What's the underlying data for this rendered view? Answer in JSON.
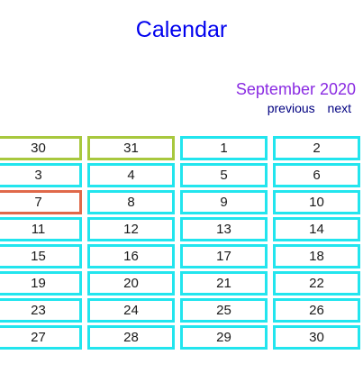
{
  "title": "Calendar",
  "month_label": "September 2020",
  "nav": {
    "previous": "previous",
    "next": "next"
  },
  "selected_day": "7",
  "colors": {
    "title": "#0000ee",
    "month_label": "#8a2be2",
    "nav": "#000080",
    "current_month_border": "#22e5ee",
    "adjacent_month_border": "#a8c83e",
    "selected_border": "#e0694a"
  },
  "days": [
    {
      "label": "30",
      "state": "prev-month"
    },
    {
      "label": "31",
      "state": "prev-month"
    },
    {
      "label": "1",
      "state": "current"
    },
    {
      "label": "2",
      "state": "current"
    },
    {
      "label": "3",
      "state": "current"
    },
    {
      "label": "4",
      "state": "current"
    },
    {
      "label": "5",
      "state": "current"
    },
    {
      "label": "6",
      "state": "current"
    },
    {
      "label": "7",
      "state": "selected"
    },
    {
      "label": "8",
      "state": "current"
    },
    {
      "label": "9",
      "state": "current"
    },
    {
      "label": "10",
      "state": "current"
    },
    {
      "label": "11",
      "state": "current"
    },
    {
      "label": "12",
      "state": "current"
    },
    {
      "label": "13",
      "state": "current"
    },
    {
      "label": "14",
      "state": "current"
    },
    {
      "label": "15",
      "state": "current"
    },
    {
      "label": "16",
      "state": "current"
    },
    {
      "label": "17",
      "state": "current"
    },
    {
      "label": "18",
      "state": "current"
    },
    {
      "label": "19",
      "state": "current"
    },
    {
      "label": "20",
      "state": "current"
    },
    {
      "label": "21",
      "state": "current"
    },
    {
      "label": "22",
      "state": "current"
    },
    {
      "label": "23",
      "state": "current"
    },
    {
      "label": "24",
      "state": "current"
    },
    {
      "label": "25",
      "state": "current"
    },
    {
      "label": "26",
      "state": "current"
    },
    {
      "label": "27",
      "state": "current"
    },
    {
      "label": "28",
      "state": "current"
    },
    {
      "label": "29",
      "state": "current"
    },
    {
      "label": "30",
      "state": "current"
    }
  ]
}
